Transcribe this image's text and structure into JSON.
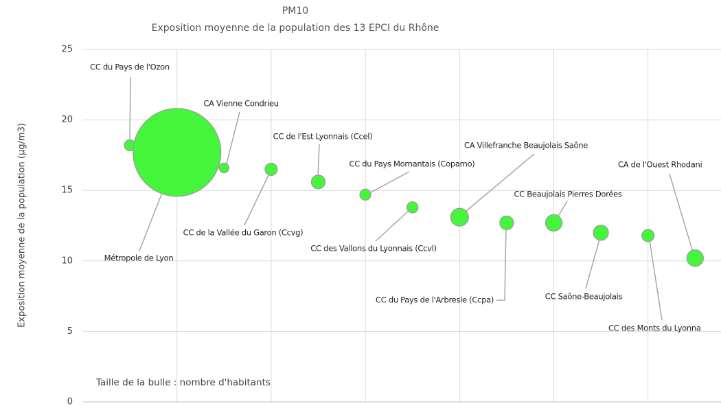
{
  "chart_data": {
    "type": "bubble",
    "title": "PM10",
    "subtitle": "Exposition moyenne de la population des 13 EPCI du Rhône",
    "y_label": "Exposition moyenne de la population (µg/m3)",
    "annotation": "Taille de la bulle : nombre d'habitants",
    "labels": [
      "CC du Pays de l'Ozon",
      "Métropole de Lyon",
      "CA Vienne Condrieu",
      "CC de la Vallée du Garon (Ccvg)",
      "CC de l'Est Lyonnais (Ccel)",
      "CC du Pays Mornantais (Copamo)",
      "CC des Vallons du Lyonnais (Ccvl)",
      "CA Villefranche Beaujolais Saône",
      "CC du Pays de l'Arbresle (Ccpa)",
      "CC Beaujolais Pierres Dorées",
      "CC Saône-Beaujolais",
      "CC des Monts du Lyonna",
      "CA de l'Ouest Rhodani"
    ],
    "x": [
      1,
      2,
      3,
      4,
      5,
      6,
      7,
      8,
      9,
      10,
      11,
      12,
      13
    ],
    "values": [
      18.2,
      17.7,
      16.6,
      16.5,
      15.6,
      14.7,
      13.8,
      13.1,
      12.7,
      12.7,
      12.0,
      11.8,
      10.2
    ],
    "sizes": [
      22000,
      1380000,
      17000,
      27000,
      34000,
      22000,
      22000,
      57000,
      34000,
      49000,
      41000,
      27000,
      49000
    ],
    "color": "#45f53c",
    "xlim": [
      0,
      14
    ],
    "xticks": [
      2,
      4,
      6,
      8,
      10,
      12
    ],
    "ylim": [
      0,
      25
    ],
    "yticks": [
      0,
      5,
      10,
      15,
      20,
      25
    ],
    "grid": true
  }
}
